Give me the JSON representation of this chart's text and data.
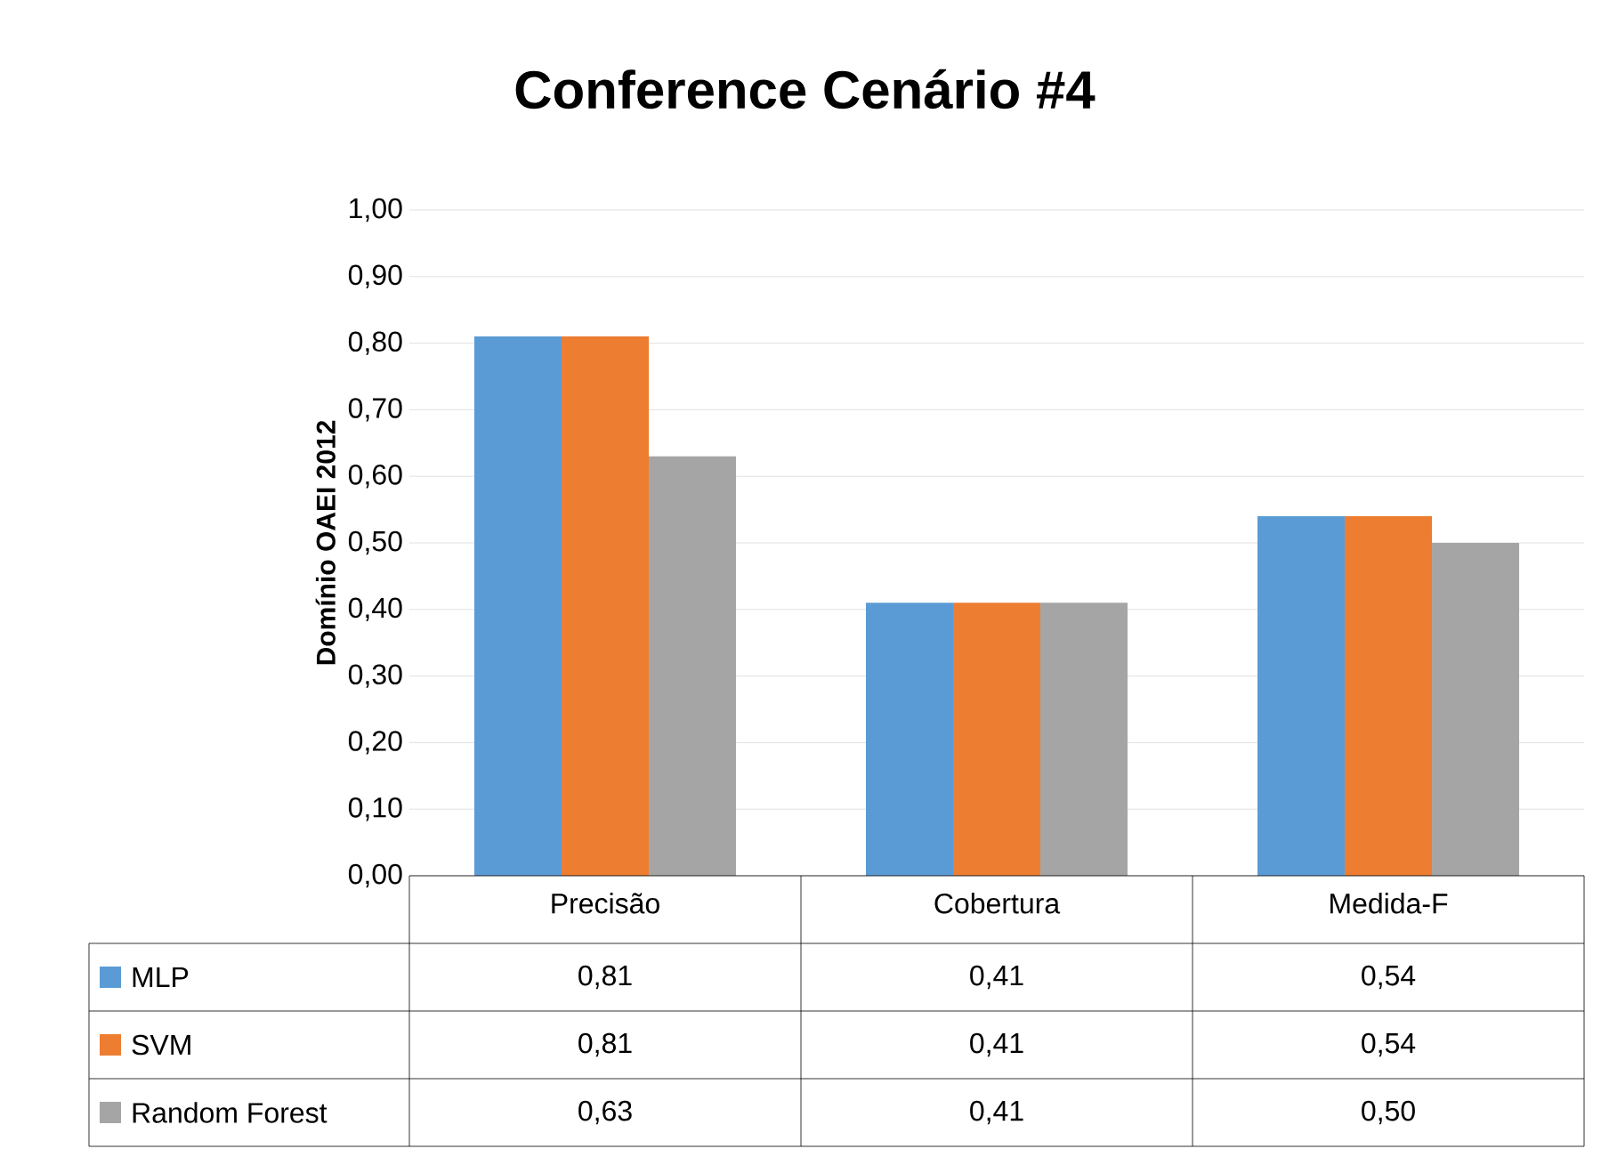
{
  "chart_data": {
    "type": "bar",
    "title": "Conference Cenário #4",
    "ylabel": "Domínio OAEI 2012",
    "categories": [
      "Precisão",
      "Cobertura",
      "Medida-F"
    ],
    "series": [
      {
        "name": "MLP",
        "color": "#5b9bd5",
        "values": [
          0.81,
          0.41,
          0.54
        ],
        "value_labels": [
          "0,81",
          "0,41",
          "0,54"
        ]
      },
      {
        "name": "SVM",
        "color": "#ed7d31",
        "values": [
          0.81,
          0.41,
          0.54
        ],
        "value_labels": [
          "0,81",
          "0,41",
          "0,54"
        ]
      },
      {
        "name": "Random Forest",
        "color": "#a5a5a5",
        "values": [
          0.63,
          0.41,
          0.5
        ],
        "value_labels": [
          "0,63",
          "0,41",
          "0,50"
        ]
      }
    ],
    "ylim": [
      0,
      1
    ],
    "yticks": [
      {
        "value": 0,
        "label": "0,00"
      },
      {
        "value": 0.1,
        "label": "0,10"
      },
      {
        "value": 0.2,
        "label": "0,20"
      },
      {
        "value": 0.3,
        "label": "0,30"
      },
      {
        "value": 0.4,
        "label": "0,40"
      },
      {
        "value": 0.5,
        "label": "0,50"
      },
      {
        "value": 0.6,
        "label": "0,60"
      },
      {
        "value": 0.7,
        "label": "0,70"
      },
      {
        "value": 0.8,
        "label": "0,80"
      },
      {
        "value": 0.9,
        "label": "0,90"
      },
      {
        "value": 1,
        "label": "1,00"
      }
    ],
    "grid": "y",
    "legend": "bottom"
  }
}
